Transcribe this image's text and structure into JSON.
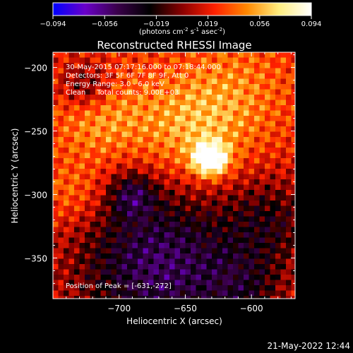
{
  "colorbar": {
    "ticks": [
      "-0.094",
      "-0.056",
      "-0.019",
      "0.019",
      "0.056",
      "0.094"
    ],
    "label_main": "(photons cm",
    "label_exp1": "-2",
    "label_mid": " s",
    "label_exp2": "-1",
    "label_end": " asec",
    "label_exp3": "-2",
    "label_close": ")"
  },
  "chart_data": {
    "type": "heatmap",
    "title": "Reconstructed RHESSI Image",
    "xlabel": "Heliocentric X (arcsec)",
    "ylabel": "Heliocentric Y (arcsec)",
    "xlim": [
      -750,
      -567
    ],
    "ylim": [
      -382,
      -188
    ],
    "xticks": [
      -700,
      -650,
      -600
    ],
    "yticks": [
      -200,
      -250,
      -300,
      -350
    ],
    "xtick_labels": [
      "−700",
      "−650",
      "−600"
    ],
    "ytick_labels": [
      "−200",
      "−250",
      "−300",
      "−350"
    ],
    "value_range": [
      -0.094,
      0.094
    ],
    "colormap": [
      "#0000ff",
      "#6a00c8",
      "#3a004a",
      "#000000",
      "#8a0000",
      "#ff2000",
      "#ff8800",
      "#ffee80",
      "#ffffff"
    ],
    "peak": {
      "x": -631,
      "y": -272
    },
    "annotations": [
      "30-May-2015 07:17:16.000 to 07:18:44.000",
      "Detectors: 3F 5F 6F 7F 8F 9F, Att 0",
      "Energy Range: 3.0 - 6.0 keV",
      "Clean     Total counts: 9.00E+03"
    ],
    "peak_label": "Position of Peak = [-631,-272]"
  },
  "footer": {
    "timestamp": "21-May-2022 12:44"
  }
}
